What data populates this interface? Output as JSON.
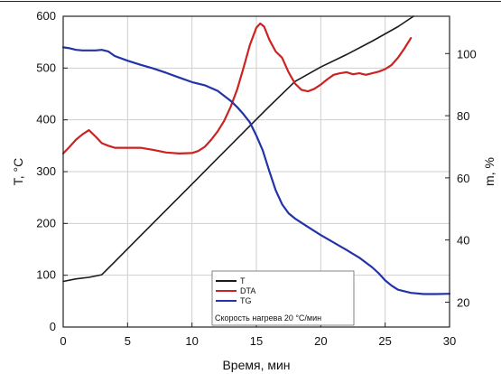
{
  "chart_data": {
    "type": "line",
    "xlabel": "Время, мин",
    "ylabel_left": "T, °C",
    "ylabel_right": "m, %",
    "xlim": [
      0,
      30
    ],
    "ylim_left": [
      0,
      600
    ],
    "ylim_right": [
      12,
      112
    ],
    "grid": true,
    "legend_position": "bottom-center",
    "legend_note": "Скорость нагрева 20 °С/мин",
    "x_ticks": [
      0,
      5,
      10,
      15,
      20,
      25,
      30
    ],
    "y_left_ticks": [
      0,
      100,
      200,
      300,
      400,
      500,
      600
    ],
    "y_right_ticks": [
      20,
      40,
      60,
      80,
      100
    ],
    "series": [
      {
        "name": "T",
        "axis": "left",
        "color": "#1a1a1a",
        "x": [
          0,
          1,
          2,
          3,
          4,
          6,
          8,
          10,
          12,
          14,
          16,
          18,
          20,
          22,
          24,
          26,
          27.2
        ],
        "y": [
          88,
          93,
          96,
          101,
          126,
          176,
          226,
          276,
          326,
          376,
          426,
          474,
          502,
          526,
          552,
          580,
          600
        ]
      },
      {
        "name": "DTA",
        "axis": "left",
        "color": "#cc2222",
        "x": [
          0,
          0.5,
          1,
          1.5,
          2,
          2.5,
          3,
          3.5,
          4,
          5,
          6,
          7,
          8,
          9,
          10,
          10.5,
          11,
          11.5,
          12,
          12.5,
          13,
          13.5,
          14,
          14.5,
          15,
          15.3,
          15.6,
          16,
          16.5,
          17,
          17.5,
          18,
          18.5,
          19,
          19.5,
          20,
          20.5,
          21,
          21.5,
          22,
          22.5,
          23,
          23.5,
          24,
          24.5,
          25,
          25.5,
          26,
          26.5,
          27
        ],
        "y": [
          335,
          348,
          362,
          372,
          380,
          368,
          355,
          350,
          346,
          346,
          346,
          342,
          337,
          335,
          336,
          340,
          348,
          362,
          378,
          398,
          425,
          458,
          500,
          545,
          578,
          586,
          580,
          555,
          532,
          520,
          492,
          470,
          458,
          455,
          460,
          468,
          478,
          487,
          490,
          492,
          488,
          490,
          487,
          490,
          493,
          498,
          506,
          520,
          538,
          558
        ]
      },
      {
        "name": "TG",
        "axis": "right",
        "color": "#2233aa",
        "x": [
          0,
          0.5,
          1,
          1.5,
          2,
          2.5,
          3,
          3.5,
          4,
          5,
          6,
          7,
          8,
          9,
          10,
          11,
          12,
          13,
          13.5,
          14,
          14.5,
          15,
          15.5,
          16,
          16.5,
          17,
          17.5,
          18,
          19,
          20,
          21,
          22,
          23,
          24,
          24.5,
          25,
          25.5,
          26,
          27,
          28,
          29,
          30
        ],
        "y": [
          102,
          101.7,
          101.2,
          101,
          101,
          101,
          101.2,
          100.7,
          99.2,
          97.7,
          96.4,
          95.2,
          93.8,
          92.3,
          90.8,
          89.8,
          88,
          84.8,
          82.8,
          80.5,
          77.8,
          73.6,
          68.8,
          62.2,
          56,
          51.5,
          48.6,
          46.9,
          44.2,
          41.6,
          39.2,
          36.8,
          34.3,
          31.2,
          29.3,
          27,
          25.3,
          24,
          23,
          22.6,
          22.6,
          22.7
        ]
      }
    ]
  }
}
